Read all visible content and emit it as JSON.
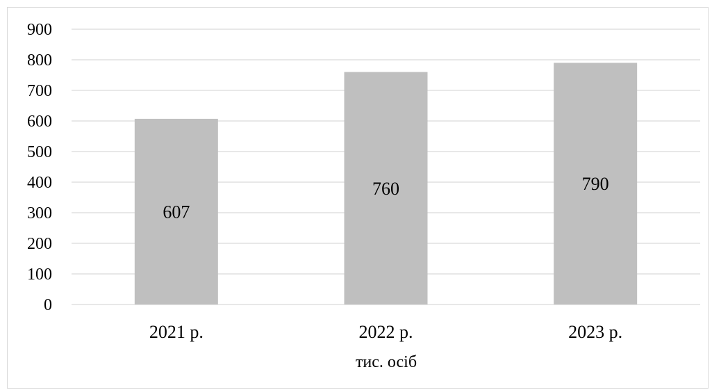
{
  "chart_data": {
    "type": "bar",
    "categories": [
      "2021 р.",
      "2022 р.",
      "2023 р."
    ],
    "values": [
      607,
      760,
      790
    ],
    "data_labels": [
      "607",
      "760",
      "790"
    ],
    "title": "",
    "xlabel": "тис. осіб",
    "ylabel": "",
    "ylim": [
      0,
      900
    ],
    "yticks": [
      "0",
      "100",
      "200",
      "300",
      "400",
      "500",
      "600",
      "700",
      "800",
      "900"
    ],
    "grid": true,
    "legend": "none",
    "colors": {
      "bar": "#bfbfbf",
      "grid": "#d9d9d9",
      "axis": "#d9d9d9",
      "text": "#000000"
    }
  }
}
